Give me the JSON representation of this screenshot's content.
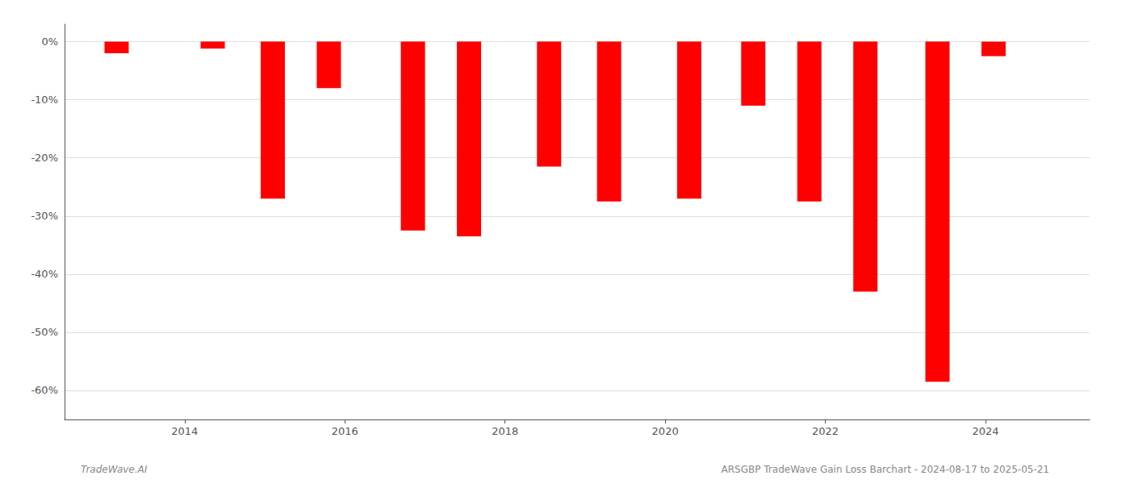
{
  "chart_data": {
    "type": "bar",
    "x": [
      2013.15,
      2014.35,
      2015.1,
      2015.8,
      2016.85,
      2017.55,
      2018.55,
      2019.3,
      2020.3,
      2021.1,
      2021.8,
      2022.5,
      2023.4,
      2024.1
    ],
    "values": [
      -2.0,
      -1.2,
      -27.0,
      -8.0,
      -32.5,
      -33.5,
      -21.5,
      -27.5,
      -27.0,
      -11.0,
      -27.5,
      -43.0,
      -58.5,
      -2.5
    ],
    "color": "#ff0000",
    "xlim": [
      2012.5,
      2025.3
    ],
    "xticks": [
      2014,
      2016,
      2018,
      2020,
      2022,
      2024
    ],
    "ylim": [
      -65,
      3
    ],
    "yticks": [
      {
        "value": 0,
        "label": "0%"
      },
      {
        "value": -10,
        "label": "-10%"
      },
      {
        "value": -20,
        "label": "-20%"
      },
      {
        "value": -30,
        "label": "-30%"
      },
      {
        "value": -40,
        "label": "-40%"
      },
      {
        "value": -50,
        "label": "-50%"
      },
      {
        "value": -60,
        "label": "-60%"
      }
    ],
    "grid": true,
    "annotations": [
      "TradeWave.AI",
      "ARSGBP TradeWave Gain Loss Barchart - 2024-08-17 to 2025-05-21"
    ]
  }
}
